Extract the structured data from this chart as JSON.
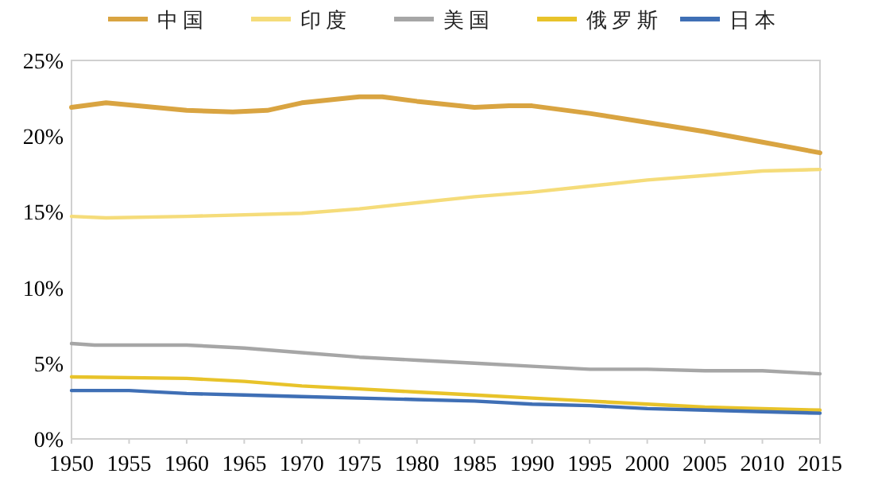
{
  "chart_data": {
    "type": "line",
    "legend": "top",
    "grid": false,
    "xlim": [
      1950,
      2015
    ],
    "xticks": [
      1950,
      1955,
      1960,
      1965,
      1970,
      1975,
      1980,
      1985,
      1990,
      1995,
      2000,
      2005,
      2010,
      2015
    ],
    "ylim": [
      0,
      25
    ],
    "yticks": [
      {
        "value": 0,
        "label": "0%"
      },
      {
        "value": 5,
        "label": "5%"
      },
      {
        "value": 10,
        "label": "10%"
      },
      {
        "value": 15,
        "label": "15%"
      },
      {
        "value": 20,
        "label": "20%"
      },
      {
        "value": 25,
        "label": "25%"
      }
    ],
    "series": [
      {
        "name": "中国",
        "color": "#d9a441",
        "x": [
          1950,
          1953,
          1960,
          1964,
          1967,
          1970,
          1975,
          1977,
          1980,
          1985,
          1988,
          1990,
          1995,
          2000,
          2005,
          2010,
          2015
        ],
        "values": [
          21.9,
          22.2,
          21.7,
          21.6,
          21.7,
          22.2,
          22.6,
          22.6,
          22.3,
          21.9,
          22.0,
          22.0,
          21.5,
          20.9,
          20.3,
          19.6,
          18.9
        ]
      },
      {
        "name": "印度",
        "color": "#f5dc7a",
        "x": [
          1950,
          1953,
          1960,
          1970,
          1975,
          1980,
          1985,
          1990,
          1995,
          2000,
          2005,
          2010,
          2015
        ],
        "values": [
          14.7,
          14.6,
          14.7,
          14.9,
          15.2,
          15.6,
          16.0,
          16.3,
          16.7,
          17.1,
          17.4,
          17.7,
          17.8
        ]
      },
      {
        "name": "美国",
        "color": "#a6a6a6",
        "x": [
          1950,
          1952,
          1960,
          1965,
          1970,
          1975,
          1980,
          1985,
          1990,
          1995,
          2000,
          2005,
          2010,
          2015
        ],
        "values": [
          6.3,
          6.2,
          6.2,
          6.0,
          5.7,
          5.4,
          5.2,
          5.0,
          4.8,
          4.6,
          4.6,
          4.5,
          4.5,
          4.3
        ]
      },
      {
        "name": "俄罗斯",
        "color": "#e8c32a",
        "x": [
          1950,
          1960,
          1965,
          1970,
          1975,
          1980,
          1985,
          1990,
          1995,
          2000,
          2005,
          2010,
          2015
        ],
        "values": [
          4.1,
          4.0,
          3.8,
          3.5,
          3.3,
          3.1,
          2.9,
          2.7,
          2.5,
          2.3,
          2.1,
          2.0,
          1.9
        ]
      },
      {
        "name": "日本",
        "color": "#3f6fb5",
        "x": [
          1950,
          1955,
          1960,
          1965,
          1970,
          1975,
          1980,
          1985,
          1990,
          1995,
          2000,
          2005,
          2010,
          2015
        ],
        "values": [
          3.2,
          3.2,
          3.0,
          2.9,
          2.8,
          2.7,
          2.6,
          2.5,
          2.3,
          2.2,
          2.0,
          1.9,
          1.8,
          1.7
        ]
      }
    ]
  }
}
